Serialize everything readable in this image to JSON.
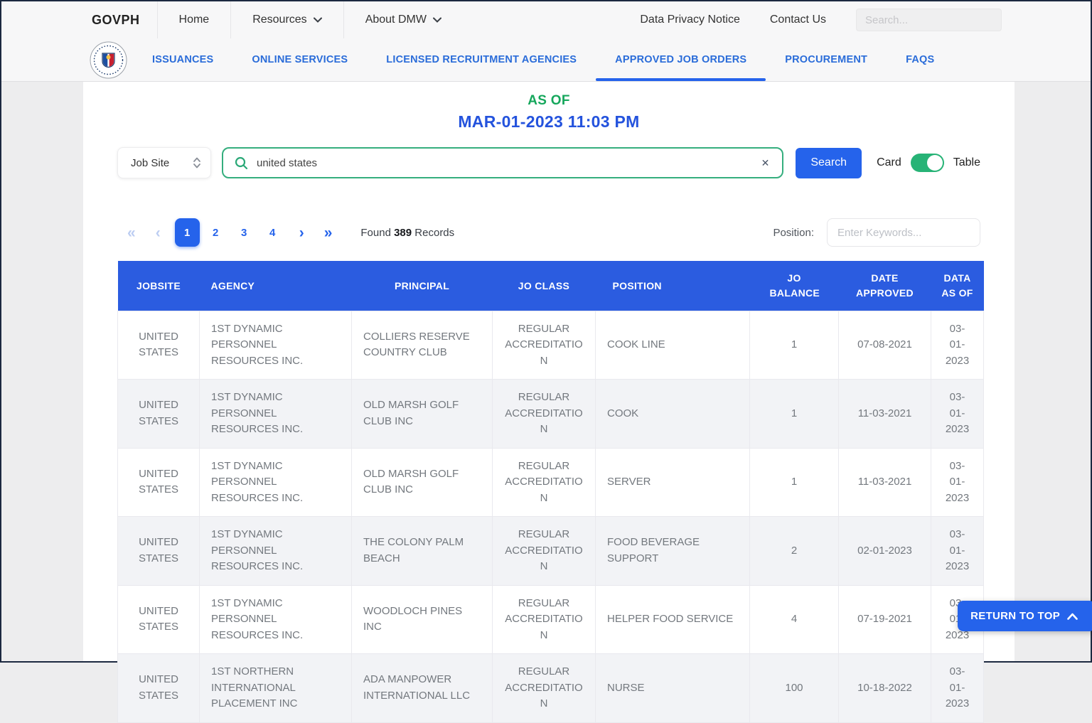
{
  "top_nav": {
    "brand": "GOVPH",
    "home": "Home",
    "resources": "Resources",
    "about": "About DMW",
    "privacy": "Data Privacy Notice",
    "contact": "Contact Us",
    "search_placeholder": "Search..."
  },
  "tabs": [
    "ISSUANCES",
    "ONLINE SERVICES",
    "LICENSED RECRUITMENT AGENCIES",
    "APPROVED JOB ORDERS",
    "PROCUREMENT",
    "FAQS"
  ],
  "active_tab": "APPROVED JOB ORDERS",
  "as_of": {
    "label": "AS OF",
    "datetime": "MAR-01-2023 11:03 PM"
  },
  "filters": {
    "jobsite_select_value": "Job Site",
    "search_value": "united states",
    "clear_icon": "✕",
    "search_button": "Search",
    "view_toggle": {
      "left_label": "Card",
      "right_label": "Table",
      "state": "table"
    }
  },
  "pagination": {
    "first_icon": "«",
    "prev_icon": "‹",
    "next_icon": "›",
    "last_icon": "»",
    "pages": [
      "1",
      "2",
      "3",
      "4"
    ],
    "active_page": "1",
    "found_prefix": "Found",
    "found_count": "389",
    "found_suffix": "Records",
    "position_label": "Position:",
    "position_placeholder": "Enter Keywords..."
  },
  "table": {
    "headers": [
      "JOBSITE",
      "AGENCY",
      "PRINCIPAL",
      "JO CLASS",
      "POSITION",
      "JO BALANCE",
      "DATE APPROVED",
      "DATA AS OF"
    ],
    "rows": [
      {
        "jobsite": "UNITED STATES",
        "agency": "1ST DYNAMIC PERSONNEL RESOURCES INC.",
        "principal": "COLLIERS RESERVE COUNTRY CLUB",
        "jo_class": "REGULAR ACCREDITATION",
        "position": "COOK LINE",
        "jo_balance": "1",
        "date_approved": "07-08-2021",
        "data_as_of": "03-01-2023"
      },
      {
        "jobsite": "UNITED STATES",
        "agency": "1ST DYNAMIC PERSONNEL RESOURCES INC.",
        "principal": "OLD MARSH GOLF CLUB INC",
        "jo_class": "REGULAR ACCREDITATION",
        "position": "COOK",
        "jo_balance": "1",
        "date_approved": "11-03-2021",
        "data_as_of": "03-01-2023"
      },
      {
        "jobsite": "UNITED STATES",
        "agency": "1ST DYNAMIC PERSONNEL RESOURCES INC.",
        "principal": "OLD MARSH GOLF CLUB INC",
        "jo_class": "REGULAR ACCREDITATION",
        "position": "SERVER",
        "jo_balance": "1",
        "date_approved": "11-03-2021",
        "data_as_of": "03-01-2023"
      },
      {
        "jobsite": "UNITED STATES",
        "agency": "1ST DYNAMIC PERSONNEL RESOURCES INC.",
        "principal": "THE COLONY PALM BEACH",
        "jo_class": "REGULAR ACCREDITATION",
        "position": "FOOD BEVERAGE SUPPORT",
        "jo_balance": "2",
        "date_approved": "02-01-2023",
        "data_as_of": "03-01-2023"
      },
      {
        "jobsite": "UNITED STATES",
        "agency": "1ST DYNAMIC PERSONNEL RESOURCES INC.",
        "principal": "WOODLOCH PINES INC",
        "jo_class": "REGULAR ACCREDITATION",
        "position": "HELPER FOOD SERVICE",
        "jo_balance": "4",
        "date_approved": "07-19-2021",
        "data_as_of": "03-01-2023"
      },
      {
        "jobsite": "UNITED STATES",
        "agency": "1ST NORTHERN INTERNATIONAL PLACEMENT INC",
        "principal": "ADA MANPOWER INTERNATIONAL LLC",
        "jo_class": "REGULAR ACCREDITATION",
        "position": "NURSE",
        "jo_balance": "100",
        "date_approved": "10-18-2022",
        "data_as_of": "03-01-2023"
      }
    ]
  },
  "return_to_top": "RETURN TO TOP",
  "colors": {
    "accent_blue": "#2563eb",
    "table_header_blue": "#2b5ce0",
    "tab_blue": "#2a6cd9",
    "asof_green": "#16a75c",
    "date_blue": "#2453dd",
    "toggle_green": "#27b376",
    "search_border_green": "#35ae7e",
    "row_stripe": "#f2f3f6",
    "cell_text": "#73787e"
  }
}
